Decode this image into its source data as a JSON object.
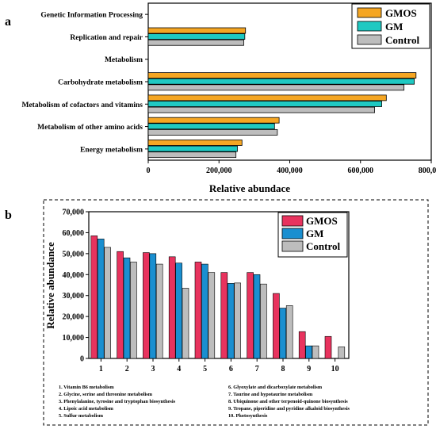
{
  "colors": {
    "GMOS_a": "#f5a623",
    "GM_a": "#1fc9c2",
    "Control": "#bdbdbd",
    "GMOS_b": "#e8335e",
    "GM_b": "#1a8fd0"
  },
  "chart_data": [
    {
      "panel_label": "a",
      "type": "bar",
      "orientation": "horizontal",
      "categories": [
        "Genetic Information Processing",
        "Replication and repair",
        "Metabolism",
        "Carbohydrate metabolism",
        "Metabolism of cofactors and vitamins",
        "Metabolism of other amino acids",
        "Energy metabolism"
      ],
      "series": [
        {
          "name": "GMOS",
          "values": [
            null,
            275000,
            null,
            757000,
            673000,
            370000,
            265000
          ]
        },
        {
          "name": "GM",
          "values": [
            null,
            273000,
            null,
            752000,
            660000,
            357000,
            252000
          ]
        },
        {
          "name": "Control",
          "values": [
            null,
            270000,
            null,
            723000,
            640000,
            365000,
            248000
          ]
        }
      ],
      "xlabel": "Relative abundace",
      "xlim": [
        0,
        800000
      ],
      "xticks": [
        "0",
        "200,000",
        "400,000",
        "600,000",
        "800,000"
      ],
      "legend": "top-right"
    },
    {
      "panel_label": "b",
      "type": "bar",
      "categories": [
        "1",
        "2",
        "3",
        "4",
        "5",
        "6",
        "7",
        "8",
        "9",
        "10"
      ],
      "series": [
        {
          "name": "GMOS",
          "values": [
            58500,
            51000,
            50500,
            48500,
            46000,
            41000,
            41000,
            31000,
            12800,
            10500
          ]
        },
        {
          "name": "GM",
          "values": [
            57000,
            48000,
            50000,
            45500,
            45000,
            35800,
            40000,
            24000,
            6000,
            0
          ]
        },
        {
          "name": "Control",
          "values": [
            53000,
            46000,
            45000,
            33500,
            41000,
            36000,
            35500,
            25200,
            6000,
            5500
          ]
        }
      ],
      "ylabel": "Relative abundance",
      "ylim": [
        0,
        70000
      ],
      "yticks": [
        "0",
        "10,000",
        "20,000",
        "30,000",
        "40,000",
        "50,000",
        "60,000",
        "70,000"
      ],
      "legend": "top-right",
      "notes_left": [
        "1. Vitamin B6 metabolism",
        "2. Glycine, serine and threonine metabolism",
        "3. Phenylalanine, tyrosine and tryptophan biosynthesis",
        "4. Lipoic acid metabolism",
        "5. Sulfur metabolism"
      ],
      "notes_right": [
        "6. Glyoxylate and dicarboxylate metabolism",
        "7. Taurine and hypotaurine metabolism",
        "8. Ubiquinone and other terpenoid-quinone biosynthesis",
        "9. Tropane, piperidine and pyridine alkaloid biosynthesis",
        "10. Photosynthesis"
      ]
    }
  ]
}
